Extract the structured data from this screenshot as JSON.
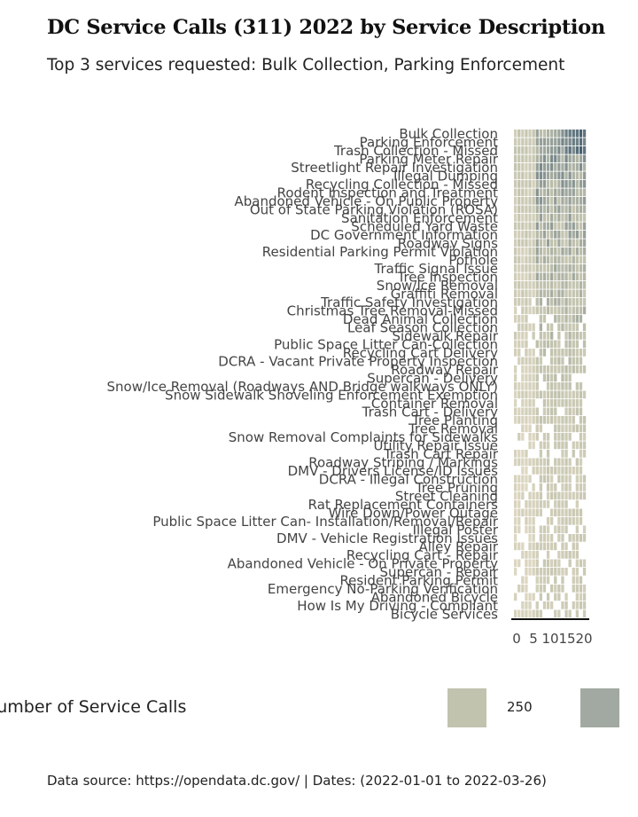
{
  "title": "DC Service Calls (311) 2022 by Service Description",
  "subtitle": "Top 3 services requested: Bulk Collection, Parking Enforcement",
  "caption": "Data source: https://opendata.dc.gov/ | Dates: (2022-01-01 to 2022-03-26)",
  "legend": {
    "title": "Number of Service Calls",
    "items": [
      {
        "label": "",
        "color": "#c2c3ae"
      },
      {
        "label": "250",
        "color": "#a2a9a3"
      }
    ]
  },
  "chart_data": {
    "type": "heatmap",
    "x_ticks": [
      0,
      5,
      10,
      15,
      20
    ],
    "x_tick_labels": [
      "0",
      "5",
      "10",
      "15",
      "20"
    ],
    "xlim": [
      0,
      20
    ],
    "categories": [
      "Bulk Collection",
      "Parking Enforcement",
      "Trash Collection - Missed",
      "Parking Meter Repair",
      "Streetlight Repair Investigation",
      "Illegal Dumping",
      "Recycling Collection - Missed",
      "Rodent Inspection and Treatment",
      "Abandoned Vehicle - On Public Property",
      "Out of State Parking Violation (ROSA)",
      "Sanitation Enforcement",
      "Scheduled Yard Waste",
      "DC Government Information",
      "Roadway Signs",
      "Residential Parking Permit Violation",
      "Pothole",
      "Traffic Signal Issue",
      "Tree Inspection",
      "Snow/Ice Removal",
      "Graffiti Removal",
      "Traffic Safety Investigation",
      "Christmas Tree Removal-Missed",
      "Dead Animal Collection",
      "Leaf Season Collection",
      "Sidewalk Repair",
      "Public Space Litter Can-Collection",
      "Recycling Cart Delivery",
      "DCRA - Vacant Private Property Inspection",
      "Roadway Repair",
      "Supercan - Delivery",
      "Snow/Ice Removal (Roadways AND Bridge walkways ONLY)",
      "Snow Sidewalk Shoveling Enforcement Exemption",
      "Container Removal",
      "Trash Cart - Delivery",
      "Tree Planting",
      "Tree Removal",
      "Snow Removal Complaints for Sidewalks",
      "Utility Repair Issue",
      "Trash Cart Repair",
      "Roadway Striping / Markings",
      "DMV - Drivers License/ID Issues",
      "DCRA - Illegal Construction",
      "Tree Pruning",
      "Street Cleaning",
      "Rat Replacement Containers",
      "Wire Down/Power Outage",
      "Public Space Litter Can- Installation/Removal/Repair",
      "Illegal Poster",
      "DMV - Vehicle Registration Issues",
      "Alley Repair",
      "Recycling Cart - Repair",
      "Abandoned Vehicle - On Private Property",
      "Supercan - Repair",
      "Resident Parking Permit",
      "Emergency No-Parking Verification",
      "Abandoned Bicycle",
      "How Is My Driving - Compliant",
      "Bicycle Services"
    ],
    "weeks": 20,
    "color_scale": {
      "low": "#e4dcc6",
      "mid": "#c2c3ae",
      "high": "#3e5a6e",
      "missing": "#ffffff"
    }
  }
}
